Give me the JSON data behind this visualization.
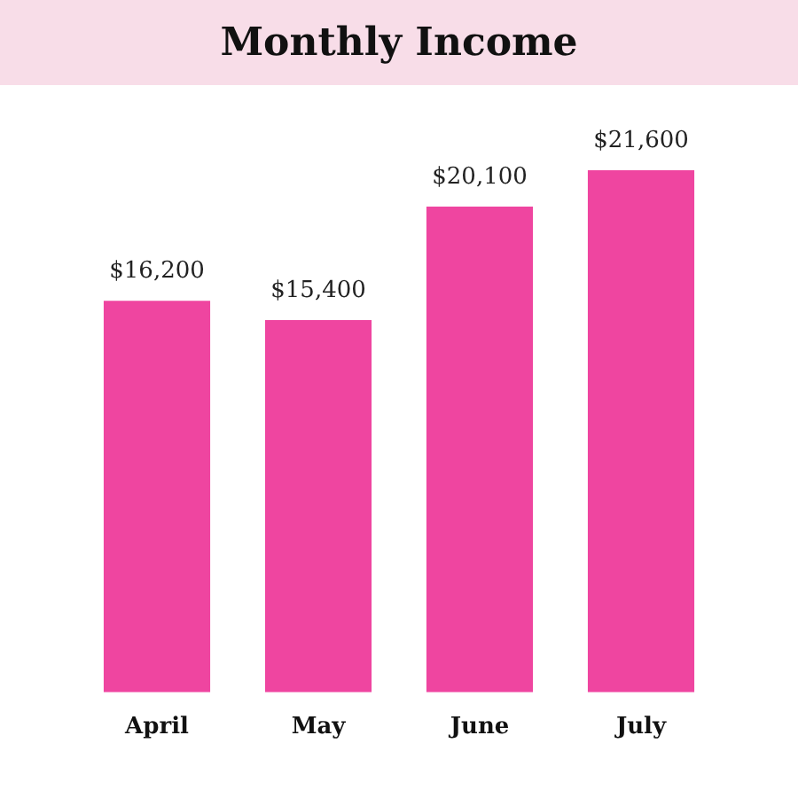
{
  "chart_data": {
    "type": "bar",
    "title": "Monthly Income",
    "categories": [
      "April",
      "May",
      "June",
      "July"
    ],
    "values": [
      16200,
      15400,
      20100,
      21600
    ],
    "color": "#ef45a0",
    "value_labels": [
      "$16,200",
      "$15,400",
      "$20,100",
      "$21,600"
    ]
  }
}
